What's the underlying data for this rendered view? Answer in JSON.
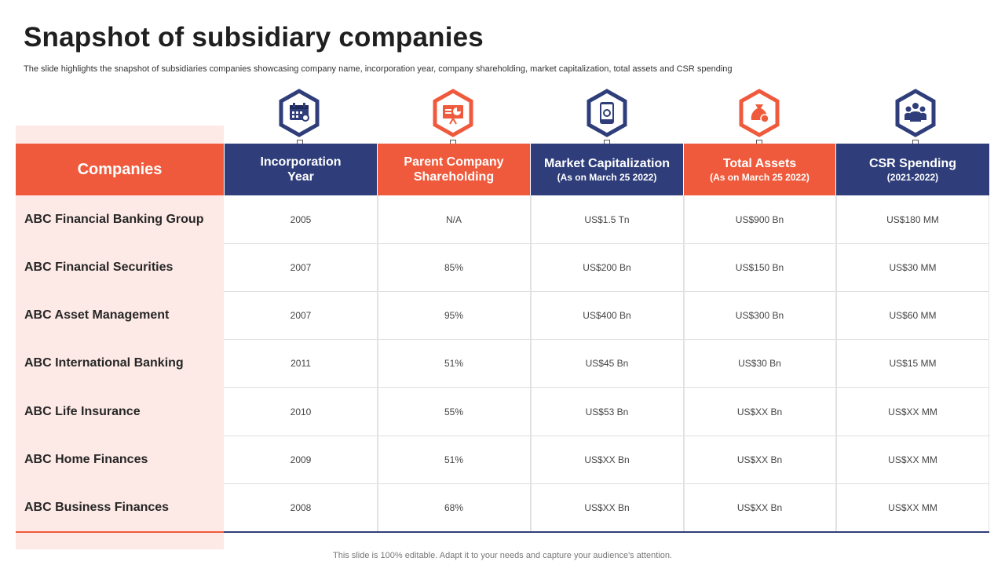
{
  "title": "Snapshot of subsidiary companies",
  "subtitle": "The slide highlights the snapshot of subsidiaries companies showcasing company name, incorporation year, company shareholding, market capitalization, total assets and CSR spending",
  "colors": {
    "blue": "#2f3e7a",
    "orange": "#f05a3c",
    "pink": "#fdeae6"
  },
  "table": {
    "first_header": "Companies",
    "columns": [
      {
        "line1": "Incorporation",
        "line2": "Year",
        "icon": "calendar-icon"
      },
      {
        "line1": "Parent Company",
        "line2": "Shareholding",
        "icon": "presentation-chart-icon"
      },
      {
        "line1": "Market Capitalization",
        "line2": "(As on March 25 2022)",
        "icon": "mobile-shop-icon"
      },
      {
        "line1": "Total Assets",
        "line2": "(As on March 25 2022)",
        "icon": "money-bag-icon"
      },
      {
        "line1": "CSR Spending",
        "line2": "(2021-2022)",
        "icon": "people-group-icon"
      }
    ],
    "rows": [
      {
        "company": "ABC Financial Banking Group",
        "values": [
          "2005",
          "N/A",
          "US$1.5  Tn",
          "US$900  Bn",
          "US$180  MM"
        ]
      },
      {
        "company": "ABC Financial Securities",
        "values": [
          "2007",
          "85%",
          "US$200  Bn",
          "US$150  Bn",
          "US$30  MM"
        ]
      },
      {
        "company": "ABC Asset Management",
        "values": [
          "2007",
          "95%",
          "US$400  Bn",
          "US$300  Bn",
          "US$60  MM"
        ]
      },
      {
        "company": "ABC International Banking",
        "values": [
          "2011",
          "51%",
          "US$45  Bn",
          "US$30  Bn",
          "US$15  MM"
        ]
      },
      {
        "company": "ABC Life Insurance",
        "values": [
          "2010",
          "55%",
          "US$53  Bn",
          "US$XX  Bn",
          "US$XX  MM"
        ]
      },
      {
        "company": "ABC Home Finances",
        "values": [
          "2009",
          "51%",
          "US$XX  Bn",
          "US$XX  Bn",
          "US$XX  MM"
        ]
      },
      {
        "company": "ABC Business  Finances",
        "values": [
          "2008",
          "68%",
          "US$XX  Bn",
          "US$XX  Bn",
          "US$XX  MM"
        ]
      }
    ]
  },
  "footer": "This slide is 100% editable. Adapt it to your needs and capture your audience's attention."
}
